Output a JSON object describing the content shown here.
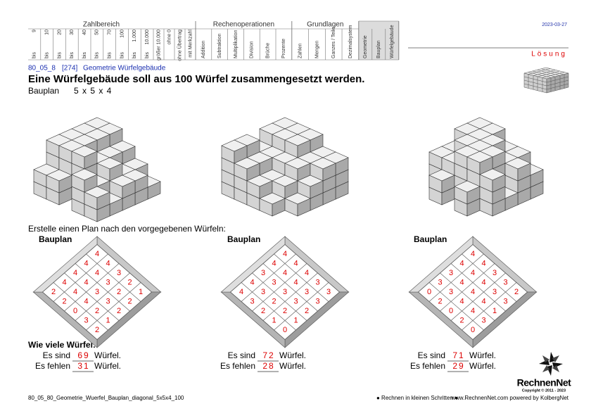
{
  "header": {
    "groups": [
      {
        "title": "Zahlbereich"
      },
      {
        "title": "Rechenoperationen"
      },
      {
        "title": "Grundlagen"
      }
    ],
    "zahlbereich": [
      {
        "limit": "9",
        "prefix": "bis"
      },
      {
        "limit": "10",
        "prefix": "bis"
      },
      {
        "limit": "20",
        "prefix": "bis"
      },
      {
        "limit": "30",
        "prefix": "bis"
      },
      {
        "limit": "40",
        "prefix": "bis"
      },
      {
        "limit": "50",
        "prefix": "bis"
      },
      {
        "limit": "70",
        "prefix": "bis"
      },
      {
        "limit": "100",
        "prefix": "bis"
      },
      {
        "limit": "1.000",
        "prefix": "bis"
      },
      {
        "limit": "10.000",
        "prefix": "bis"
      }
    ],
    "extra": [
      "größer 10.000",
      "ohne 0",
      "ohne Übertrag",
      "mit Merkzahl"
    ],
    "operations": [
      "Addition",
      "Subtraktion",
      "Multiplikation",
      "Division",
      "Brüche",
      "Prozente"
    ],
    "basics": [
      "Zahlen",
      "Mengen",
      "Ganzes / Teile",
      "Dezimalsystem"
    ],
    "topics": [
      "Geometrie",
      "Bauplan",
      "Würfelgebäude"
    ],
    "date": "2023-03-27",
    "mode": "Lösung"
  },
  "worksheet": {
    "code": "80_05_8",
    "id": "[274]",
    "topic": "Geometrie Würfelgebäude",
    "task": "Eine Würfelgebäude soll aus 100 Würfel zusammengesetzt werden.",
    "plan_label": "Bauplan",
    "plan_size": "5 x 5 x 4",
    "instruction": "Erstelle einen Plan nach den vorgegebenen Würfeln:",
    "question": "Wie viele Würfel:",
    "plans": [
      {
        "title": "Bauplan",
        "rows": [
          [
            4
          ],
          [
            4,
            4
          ],
          [
            4,
            4,
            3
          ],
          [
            4,
            4,
            3,
            2
          ],
          [
            2,
            4,
            3,
            2,
            1
          ],
          [
            2,
            4,
            3,
            2
          ],
          [
            0,
            2,
            2
          ],
          [
            3,
            1
          ],
          [
            2
          ]
        ],
        "present_label": "Es sind",
        "present": 69,
        "present_unit": "Würfel.",
        "missing_label": "Es fehlen",
        "missing": 31,
        "missing_unit": "Würfel."
      },
      {
        "title": "Bauplan",
        "rows": [
          [
            4
          ],
          [
            4,
            4
          ],
          [
            3,
            4,
            4
          ],
          [
            4,
            3,
            4,
            3
          ],
          [
            4,
            3,
            3,
            3,
            3
          ],
          [
            3,
            2,
            3,
            3
          ],
          [
            2,
            2,
            2
          ],
          [
            1,
            1
          ],
          [
            0
          ]
        ],
        "present_label": "Es sind",
        "present": 72,
        "present_unit": "Würfel.",
        "missing_label": "Es fehlen",
        "missing": 28,
        "missing_unit": "Würfel."
      },
      {
        "title": "Bauplan",
        "rows": [
          [
            4
          ],
          [
            4,
            4
          ],
          [
            3,
            4,
            3
          ],
          [
            3,
            4,
            4,
            3
          ],
          [
            0,
            3,
            4,
            3,
            2
          ],
          [
            2,
            4,
            4,
            3
          ],
          [
            0,
            4,
            1
          ],
          [
            2,
            3
          ],
          [
            0
          ]
        ],
        "present_label": "Es sind",
        "present": 71,
        "present_unit": "Würfel.",
        "missing_label": "Es fehlen",
        "missing": 29,
        "missing_unit": "Würfel."
      }
    ]
  },
  "footer": {
    "file": "80_05_80_Geometrie_Wuerfel_Bauplan_diagonal_5x5x4_100",
    "slogan": "● Rechnen in kleinen Schritten ●",
    "site": "www.RechnenNet.com powered by KolbergNet",
    "brand": "RechnenNet",
    "copyright": "Copyright © 2011 - 2023"
  }
}
